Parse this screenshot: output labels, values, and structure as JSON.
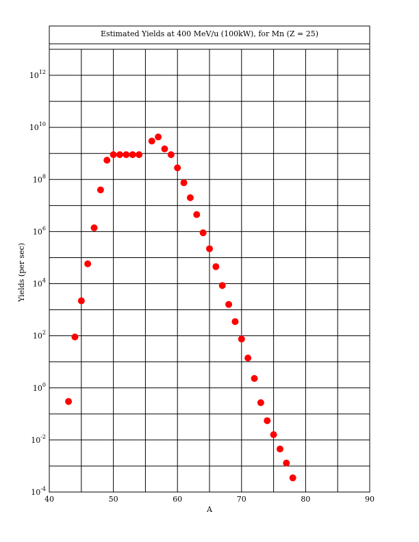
{
  "chart_data": {
    "type": "scatter",
    "title": "Estimated Yields at 400 MeV/u (100kW), for Mn (Z = 25)",
    "xlabel": "A",
    "ylabel": "Yields (per sec)",
    "xlim": [
      40,
      90
    ],
    "ylim_log10": [
      -4,
      13
    ],
    "y_scale": "log",
    "grid": true,
    "x_ticks": [
      40,
      50,
      60,
      70,
      80,
      90
    ],
    "y_tick_exponents": [
      -4,
      -2,
      0,
      2,
      4,
      6,
      8,
      10,
      12
    ],
    "y_tick_base": "10",
    "marker_color": "#ff0000",
    "series": [
      {
        "x": [
          43,
          44,
          45,
          46,
          47,
          48,
          49,
          50,
          51,
          52,
          53,
          54,
          56,
          57,
          58,
          59,
          60,
          61,
          62,
          63,
          64,
          65,
          66,
          67,
          68,
          69,
          70,
          71,
          72,
          73,
          74,
          75,
          76,
          77,
          78
        ],
        "y": [
          0.3,
          90,
          2200.0,
          58000.0,
          1400000.0,
          40000000.0,
          550000000.0,
          900000000.0,
          900000000.0,
          900000000.0,
          900000000.0,
          900000000.0,
          3000000000.0,
          4300000000.0,
          1500000000.0,
          900000000.0,
          280000000.0,
          75000000.0,
          20000000.0,
          4500000.0,
          900000.0,
          220000.0,
          45000.0,
          8500.0,
          1600.0,
          350.0,
          75,
          14,
          2.3,
          0.27,
          0.055,
          0.016,
          0.0045,
          0.0013,
          0.00035
        ]
      }
    ]
  }
}
